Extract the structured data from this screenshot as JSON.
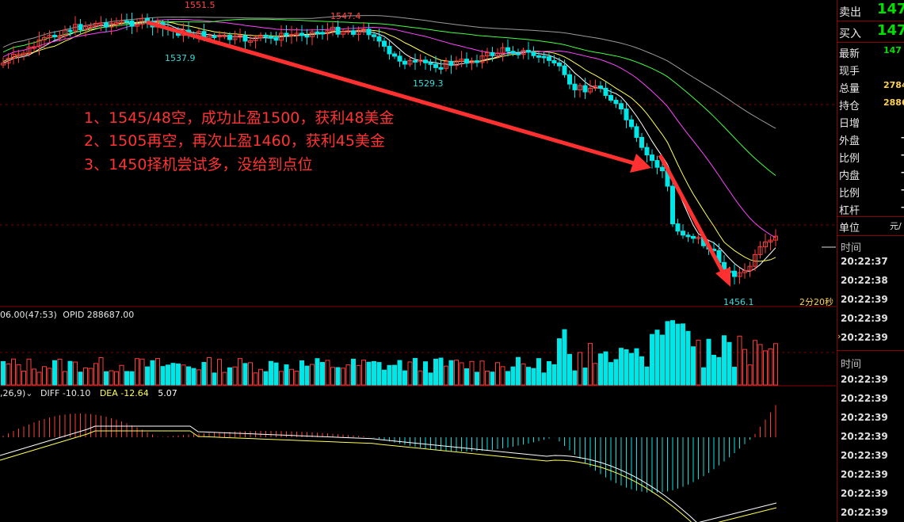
{
  "price_labels": {
    "high1": "1551.5",
    "high2": "1547.4",
    "low1": "1537.9",
    "low2": "1529.3",
    "low3": "1456.1"
  },
  "annotations": [
    "1、1545/48空，成功止盈1500，获利48美金",
    "2、1505再空，再次止盈1460，获利45美金",
    "3、1450择机尝试多，没给到点位"
  ],
  "countdown": "2分20秒",
  "volume_info": {
    "prefix": "06.00(47:53)",
    "opid": "OPID 288687.00"
  },
  "macd_info": {
    "params": ",26,9)",
    "diff": "DIFF -10.10",
    "dea": "DEA -12.64",
    "macd": "5.07"
  },
  "right_panel": {
    "sell_label": "卖出",
    "sell_value": "147",
    "buy_label": "买入",
    "buy_value": "147",
    "rows": [
      {
        "label": "最新",
        "value": "147"
      },
      {
        "label": "现手",
        "value": ""
      },
      {
        "label": "总量",
        "value": "2784"
      },
      {
        "label": "持仓",
        "value": "2886"
      },
      {
        "label": "日增",
        "value": ""
      },
      {
        "label": "外盘",
        "value": "-"
      },
      {
        "label": "比例",
        "value": "-"
      },
      {
        "label": "内盘",
        "value": "-"
      },
      {
        "label": "比例",
        "value": "-"
      },
      {
        "label": "杠杆",
        "value": "-"
      }
    ],
    "unit_label": "单位",
    "unit_value": "元/",
    "time_header": "时间",
    "times_a": [
      "20:22:37",
      "20:22:38",
      "20:22:39",
      "20:22:39",
      "20:22:39"
    ],
    "time_header2": "时间",
    "times_b": [
      "20:22:39",
      "20:22:39",
      "20:22:39",
      "20:22:39",
      "20:22:39",
      "20:22:39",
      "20:22:39",
      "20:22:39"
    ]
  },
  "colors": {
    "up": "#ff3b3b",
    "down": "#00e5e5",
    "arrow": "#ff3030",
    "ma5": "#ffffff",
    "ma10": "#ffff55",
    "ma20": "#ff44ff",
    "ma40": "#44ff44",
    "ma60": "#9a9a9a"
  }
}
